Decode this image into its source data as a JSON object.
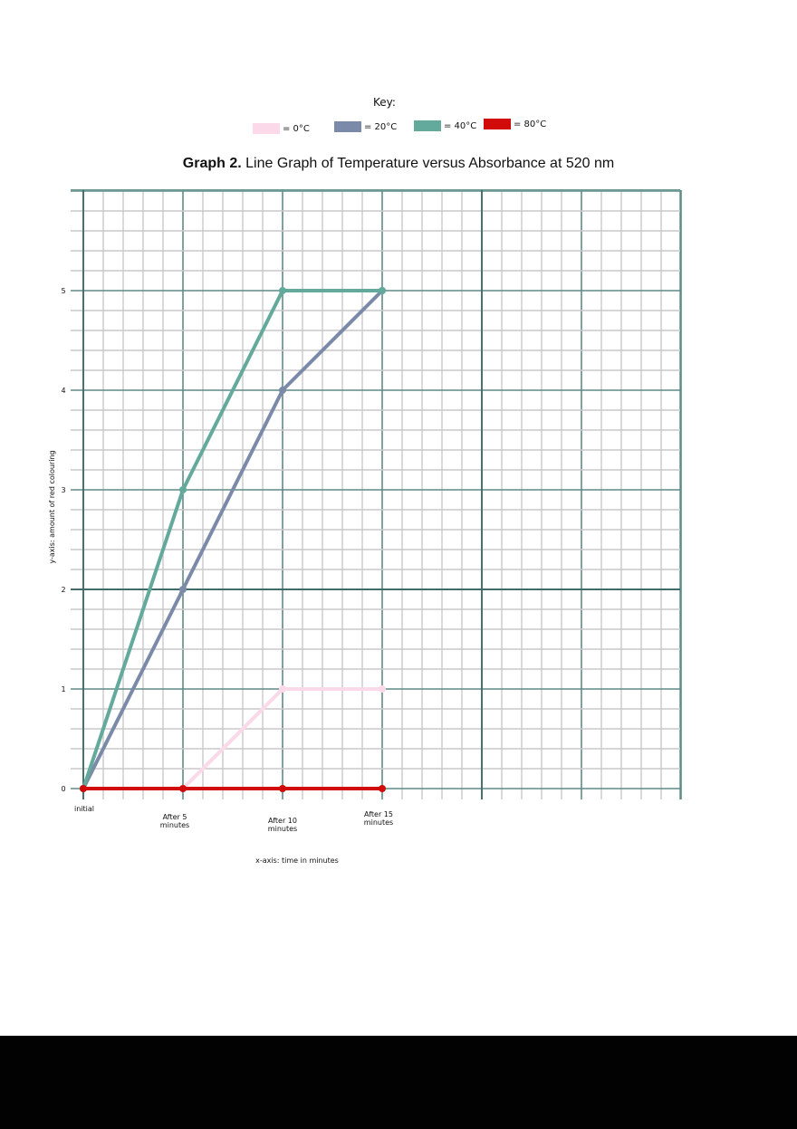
{
  "key": {
    "title": "Key:",
    "items": [
      {
        "label": "= 0°C",
        "color": "#fcd9e8"
      },
      {
        "label": "= 20°C",
        "color": "#7b8aa8"
      },
      {
        "label": "= 40°C",
        "color": "#63a99c"
      },
      {
        "label": "= 80°C",
        "color": "#d10a0a"
      }
    ]
  },
  "title": {
    "bold": "Graph 2.",
    "rest": " Line Graph of Temperature versus Absorbance at 520 nm"
  },
  "chart_data": {
    "type": "line",
    "title": "Graph 2. Line Graph of Temperature versus Absorbance at 520 nm",
    "xlabel": "x-axis: time in minutes",
    "ylabel": "y-axis: amount of red colouring",
    "categories": [
      "initial",
      "After 5 minutes",
      "After 10 minutes",
      "After 15 minutes"
    ],
    "y_ticks": [
      0,
      1,
      2,
      3,
      4,
      5
    ],
    "ylim": [
      0,
      5.5
    ],
    "grid": true,
    "legend_position": "top",
    "series": [
      {
        "name": "0°C",
        "color": "#fcd9e8",
        "values": [
          null,
          0,
          1,
          1
        ]
      },
      {
        "name": "20°C",
        "color": "#7b8aa8",
        "values": [
          0,
          2,
          4,
          5
        ]
      },
      {
        "name": "40°C",
        "color": "#63a99c",
        "values": [
          0,
          3,
          5,
          5
        ]
      },
      {
        "name": "80°C",
        "color": "#d10a0a",
        "values": [
          0,
          0,
          0,
          0
        ]
      }
    ]
  },
  "axes": {
    "x_tick_labels": [
      {
        "line1": "initial",
        "line2": ""
      },
      {
        "line1": "After 5",
        "line2": "minutes"
      },
      {
        "line1": "After 10",
        "line2": "minutes"
      },
      {
        "line1": "After 15",
        "line2": "minutes"
      }
    ],
    "xlabel": "x-axis: time in minutes",
    "ylabel": "y-axis: amount of red colouring"
  }
}
